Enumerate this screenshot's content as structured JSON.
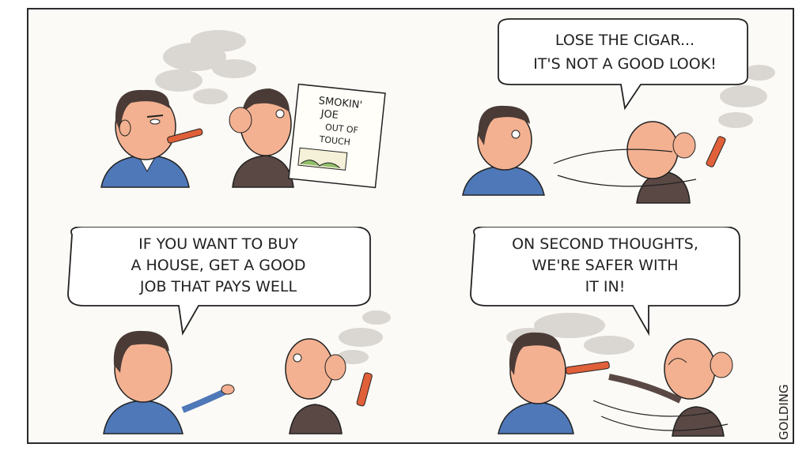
{
  "panels": [
    {
      "id": "panel-1",
      "sign": {
        "lines": [
          "SMOKIN'",
          "JOE",
          "OUT OF",
          "TOUCH"
        ]
      }
    },
    {
      "id": "panel-2",
      "speech": [
        "LOSE THE CIGAR...",
        "IT'S NOT A GOOD LOOK!"
      ]
    },
    {
      "id": "panel-3",
      "speech": [
        "IF YOU WANT TO BUY",
        "A HOUSE, GET A GOOD",
        "JOB THAT PAYS WELL"
      ]
    },
    {
      "id": "panel-4",
      "speech": [
        "ON SECOND THOUGHTS,",
        "WE'RE SAFER WITH",
        "IT IN!"
      ]
    }
  ],
  "signature": "GOLDING",
  "colors": {
    "suit_blue": "#4f78b8",
    "suit_dark": "#5a4844",
    "skin": "#f3b191",
    "hair_dark": "#4a3b36",
    "cigar": "#e0603a",
    "smoke": "#c9c5c1"
  }
}
